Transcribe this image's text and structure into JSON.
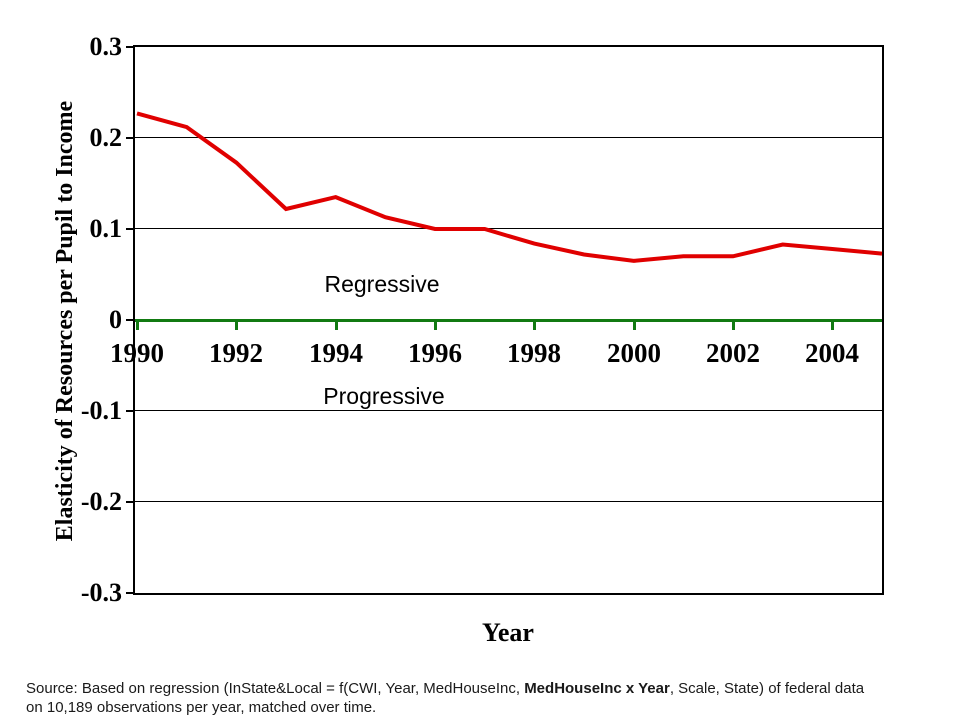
{
  "chart_data": {
    "type": "line",
    "title": "",
    "xlabel": "Year",
    "ylabel": "Elasticity of Resources per Pupil to Income",
    "x": [
      1990,
      1991,
      1992,
      1993,
      1994,
      1995,
      1996,
      1997,
      1998,
      1999,
      2000,
      2001,
      2002,
      2003,
      2004,
      2005
    ],
    "series": [
      {
        "name": "Elasticity of resources per pupil to income",
        "color": "#e00000",
        "values": [
          0.227,
          0.212,
          0.173,
          0.122,
          0.135,
          0.113,
          0.1,
          0.1,
          0.084,
          0.072,
          0.065,
          0.07,
          0.07,
          0.083,
          0.078,
          0.073
        ]
      }
    ],
    "ylim": [
      -0.3,
      0.3
    ],
    "yticks": [
      "0.3",
      "0.2",
      "0.1",
      "0",
      "-0.1",
      "-0.2",
      "-0.3"
    ],
    "xticks": [
      "1990",
      "1992",
      "1994",
      "1996",
      "1998",
      "2000",
      "2002",
      "2004"
    ],
    "grid": true,
    "legend": "none",
    "zero_line_color": "#117a11",
    "axis_color": "#000000"
  },
  "annotations": {
    "above_zero": "Regressive",
    "below_zero": "Progressive"
  },
  "source_note": {
    "line1_prefix": "Source: Based on regression (InState&Local = f(CWI, Year, MedHouseInc, ",
    "line1_bold": "MedHouseInc x Year",
    "line1_suffix": ", Scale, State) of federal data",
    "line2": "on 10,189 observations per year, matched over time."
  }
}
